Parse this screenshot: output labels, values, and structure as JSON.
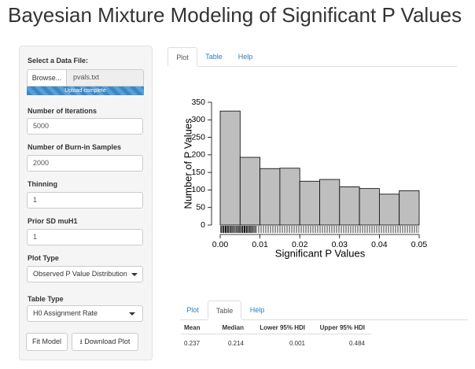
{
  "title": "Bayesian Mixture Modeling of Significant P Values",
  "sidebar": {
    "file_label": "Select a Data File:",
    "browse_button": "Browse...",
    "file_name": "pvals.txt",
    "upload_status": "Upload complete",
    "inputs": [
      {
        "label": "Number of Iterations",
        "value": "5000"
      },
      {
        "label": "Number of Burn-in Samples",
        "value": "2000"
      },
      {
        "label": "Thinning",
        "value": "1"
      },
      {
        "label": "Prior SD muH1",
        "value": "1"
      }
    ],
    "plot_type": {
      "label": "Plot Type",
      "value": "Observed P Value Distribution"
    },
    "table_type": {
      "label": "Table Type",
      "value": "H0 Assignment Rate"
    },
    "buttons": [
      "Fit Model",
      "Download Plot"
    ]
  },
  "plot_tabs": [
    "Plot",
    "Table",
    "Help"
  ],
  "chart_data": {
    "type": "histogram",
    "xlabel": "Significant P Values",
    "ylabel": "Number of P Values",
    "bins": [
      0,
      0.005,
      0.01,
      0.015,
      0.02,
      0.025,
      0.03,
      0.035,
      0.04,
      0.045,
      0.05
    ],
    "values": [
      325,
      193,
      161,
      162,
      125,
      130,
      109,
      104,
      88,
      98
    ],
    "color": "#bebebe",
    "xlim": [
      0,
      0.05
    ],
    "xticks": [
      {
        "value": 0,
        "label": "0.00"
      },
      {
        "value": 0.01,
        "label": "0.01"
      },
      {
        "value": 0.02,
        "label": "0.02"
      },
      {
        "value": 0.03,
        "label": "0.03"
      },
      {
        "value": 0.04,
        "label": "0.04"
      },
      {
        "value": 0.05,
        "label": "0.05"
      }
    ],
    "ylim": [
      0,
      350
    ],
    "yticks": [
      0,
      50,
      100,
      150,
      200,
      250,
      300,
      350
    ]
  },
  "table_tabs": [
    "Plot",
    "Table",
    "Help"
  ],
  "table": {
    "header": [
      "Mean",
      "Median",
      "Lower 95% HDI",
      "Upper 95% HDI"
    ],
    "rows": [
      [
        "0.237",
        "0.214",
        "0.001",
        "0.484"
      ]
    ]
  }
}
